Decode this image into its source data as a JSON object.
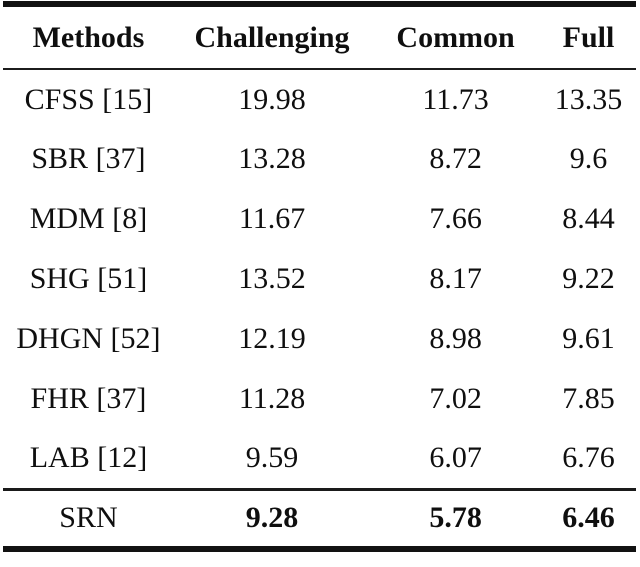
{
  "table": {
    "columns": [
      "Methods",
      "Challenging",
      "Common",
      "Full"
    ],
    "rows": [
      {
        "method": "CFSS [15]",
        "challenging": "19.98",
        "common": "11.73",
        "full": "13.35"
      },
      {
        "method": "SBR [37]",
        "challenging": "13.28",
        "common": "8.72",
        "full": "9.6"
      },
      {
        "method": "MDM [8]",
        "challenging": "11.67",
        "common": "7.66",
        "full": "8.44"
      },
      {
        "method": "SHG [51]",
        "challenging": "13.52",
        "common": "8.17",
        "full": "9.22"
      },
      {
        "method": "DHGN [52]",
        "challenging": "12.19",
        "common": "8.98",
        "full": "9.61"
      },
      {
        "method": "FHR [37]",
        "challenging": "11.28",
        "common": "7.02",
        "full": "7.85"
      },
      {
        "method": "LAB [12]",
        "challenging": "9.59",
        "common": "6.07",
        "full": "6.76"
      },
      {
        "method": "SRN",
        "challenging": "9.28",
        "common": "5.78",
        "full": "6.46"
      }
    ],
    "colors": {
      "text": "#0f0f0f",
      "rule": "#121212",
      "background": "#ffffff"
    }
  }
}
